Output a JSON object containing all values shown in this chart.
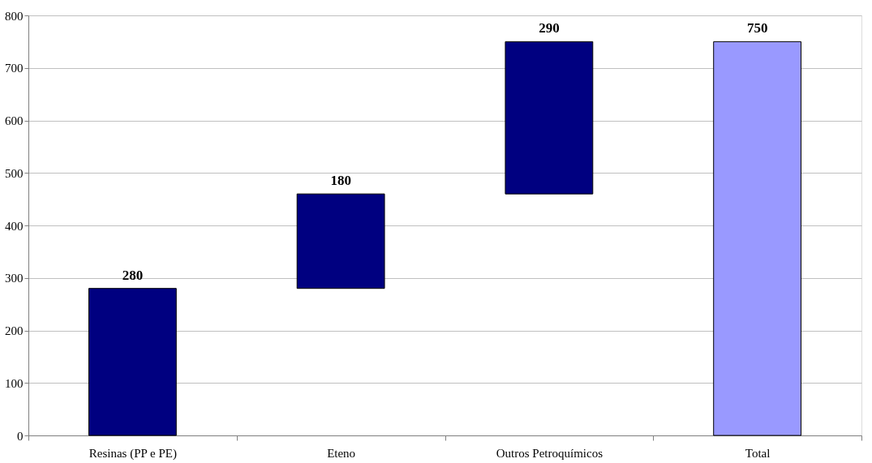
{
  "chart_data": {
    "type": "bar",
    "categories": [
      "Resinas (PP e PE)",
      "Eteno",
      "Outros Petroquímicos",
      "Total"
    ],
    "values": [
      280,
      180,
      290,
      750
    ],
    "base": [
      0,
      280,
      460,
      0
    ],
    "colors": [
      "#000080",
      "#000080",
      "#000080",
      "#9999ff"
    ],
    "ylim": [
      0,
      800
    ],
    "yticks": [
      0,
      100,
      200,
      300,
      400,
      500,
      600,
      700,
      800
    ],
    "grid": "y",
    "data_labels": true
  }
}
